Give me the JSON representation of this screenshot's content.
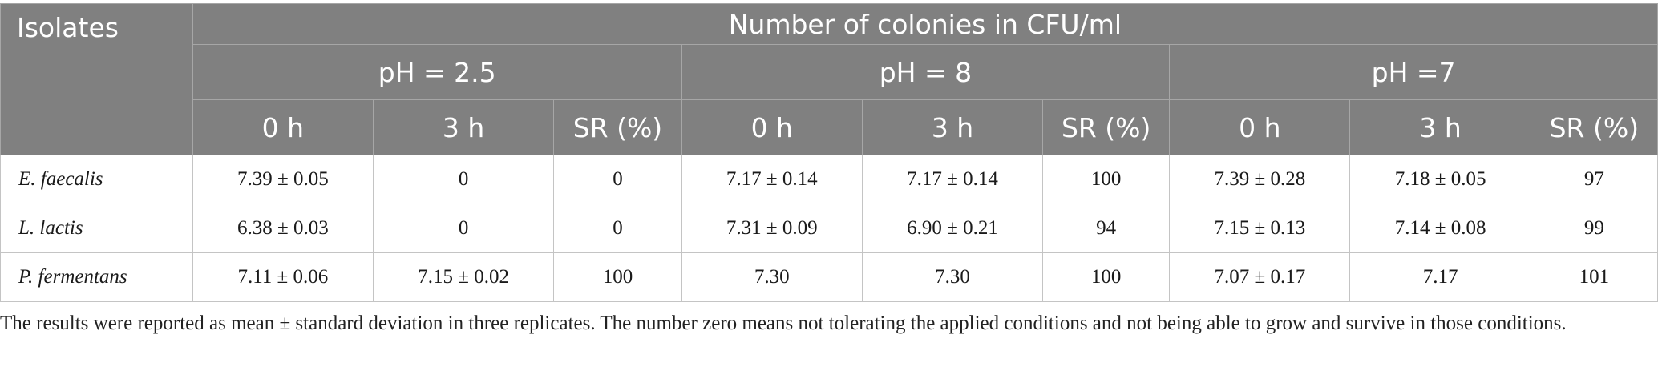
{
  "table": {
    "header_isolates": "Isolates",
    "header_group": "Number of colonies in CFU/ml",
    "ph_groups": [
      "pH = 2.5",
      "pH = 8",
      "pH =7"
    ],
    "sub_headers": [
      "0 h",
      "3 h",
      "SR (%)",
      "0 h",
      "3 h",
      "SR (%)",
      "0 h",
      "3 h",
      "SR (%)"
    ],
    "rows": [
      {
        "isolate": "E. faecalis",
        "cells": [
          "7.39 ± 0.05",
          "0",
          "0",
          "7.17 ± 0.14",
          "7.17 ± 0.14",
          "100",
          "7.39 ± 0.28",
          "7.18 ± 0.05",
          "97"
        ]
      },
      {
        "isolate": "L. lactis",
        "cells": [
          "6.38 ± 0.03",
          "0",
          "0",
          "7.31 ± 0.09",
          "6.90 ± 0.21",
          "94",
          "7.15 ± 0.13",
          "7.14 ± 0.08",
          "99"
        ]
      },
      {
        "isolate": "P. fermentans",
        "cells": [
          "7.11 ± 0.06",
          "7.15 ± 0.02",
          "100",
          "7.30",
          "7.30",
          "100",
          "7.07 ± 0.17",
          "7.17",
          "101"
        ]
      }
    ]
  },
  "footnote": "The results were reported as mean ± standard deviation in three replicates. The number zero means not tolerating the applied conditions and not being able to grow and survive in those conditions."
}
